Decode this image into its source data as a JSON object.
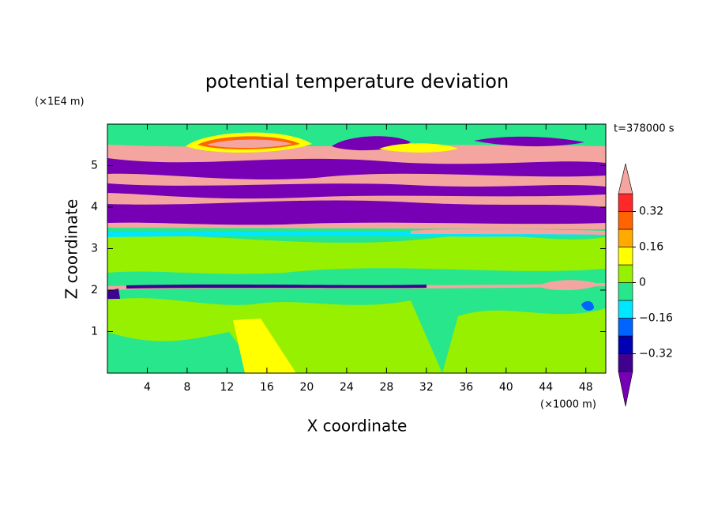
{
  "chart_data": {
    "type": "contour",
    "title": "potential temperature deviation",
    "xlabel": "X coordinate",
    "ylabel": "Z coordinate",
    "x_unit": "(×1000 m)",
    "y_unit": "(×1E4 m)",
    "annotation": "t=378000 s",
    "xlim": [
      0,
      50
    ],
    "xticks": [
      4,
      8,
      12,
      16,
      20,
      24,
      28,
      32,
      36,
      40,
      44,
      48
    ],
    "ylim": [
      0,
      6
    ],
    "yticks": [
      1,
      2,
      3,
      4,
      5
    ],
    "colorbar": {
      "levels": [
        -0.4,
        -0.32,
        -0.24,
        -0.16,
        -0.08,
        0,
        0.08,
        0.16,
        0.24,
        0.32,
        0.4
      ],
      "colors": [
        "#400090",
        "#0000b4",
        "#0064ff",
        "#00e6ff",
        "#28e68c",
        "#96f000",
        "#ffff00",
        "#ffaa00",
        "#ff6400",
        "#ff2828"
      ],
      "under_color": "#7800b4",
      "over_color": "#f4a5a0",
      "ticks": [
        {
          "value": -0.32,
          "label": "−0.32"
        },
        {
          "value": -0.16,
          "label": "−0.16"
        },
        0,
        0.16,
        0.32
      ]
    }
  }
}
